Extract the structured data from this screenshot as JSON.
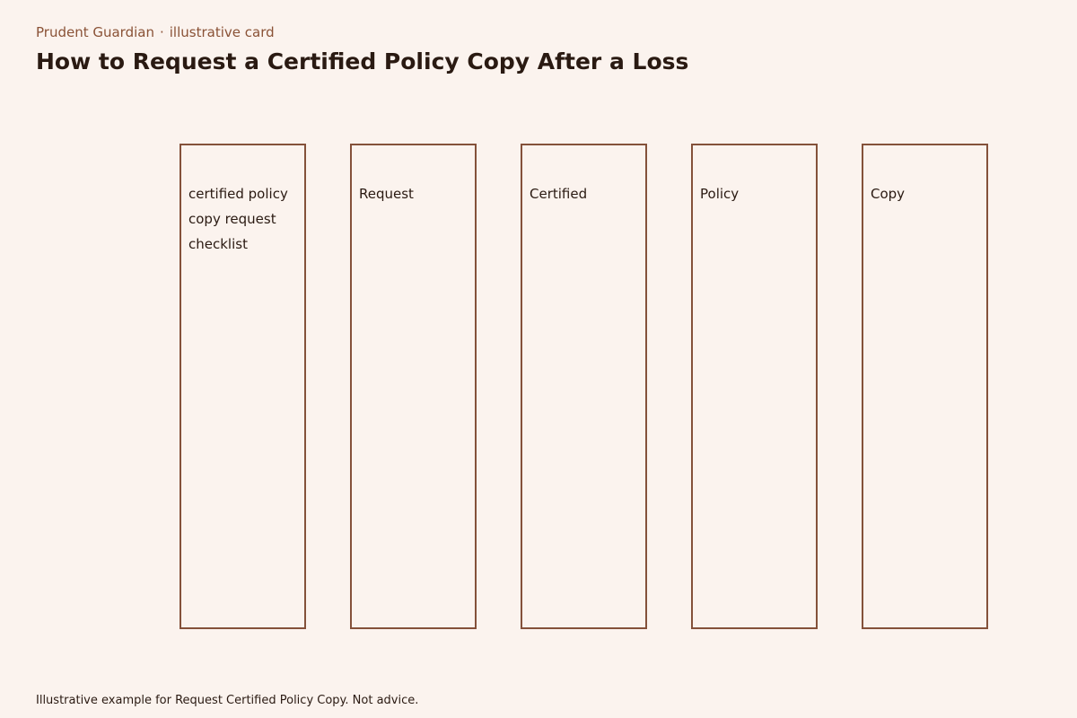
{
  "header": {
    "brand": "Prudent Guardian",
    "separator": "·",
    "tag": "illustrative card",
    "title": "How to Request a Certified Policy Copy After a Loss"
  },
  "columns": [
    {
      "label": "certified policy copy request checklist"
    },
    {
      "label": "Request"
    },
    {
      "label": "Certified"
    },
    {
      "label": "Policy"
    },
    {
      "label": "Copy"
    }
  ],
  "footer": {
    "note": "Illustrative example for Request Certified Policy Copy. Not advice."
  },
  "colors": {
    "background": "#fbf3ee",
    "accent": "#84513a",
    "eyebrow": "#8a5236",
    "text": "#2a1a12"
  }
}
